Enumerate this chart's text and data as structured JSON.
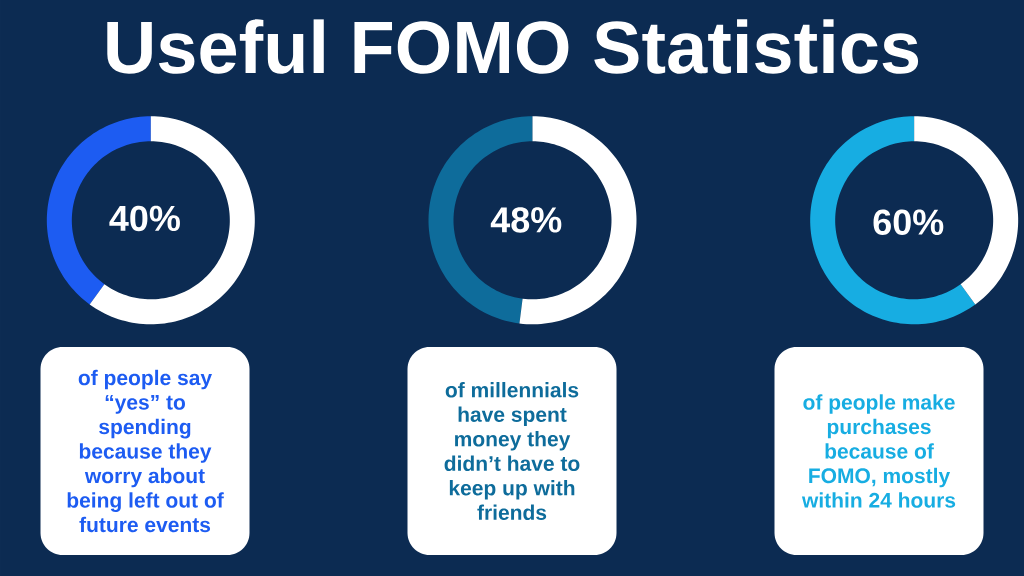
{
  "chart_data": [
    {
      "type": "donut",
      "title": "Useful FOMO Statistics",
      "categories": [
        null,
        null
      ],
      "values": [
        40,
        60
      ],
      "colors": [
        "#1d5cf2",
        "#ffffff"
      ],
      "value_labels": [
        "40%",
        null
      ],
      "annotations": [
        "of people say “yes” to spending because they worry about being left out of future events"
      ]
    },
    {
      "type": "donut",
      "categories": [
        null,
        null
      ],
      "values": [
        48,
        52
      ],
      "colors": [
        "#0e6c9b",
        "#ffffff"
      ],
      "value_labels": [
        "48%",
        null
      ],
      "annotations": [
        "of millennials have spent money they didn’t have to keep up with friends"
      ]
    },
    {
      "type": "donut",
      "categories": [
        null,
        null
      ],
      "values": [
        60,
        40
      ],
      "colors": [
        "#17ade2",
        "#ffffff"
      ],
      "value_labels": [
        "60%",
        null
      ],
      "annotations": [
        "of people make purchases because of FOMO, mostly within 24 hours"
      ]
    }
  ]
}
